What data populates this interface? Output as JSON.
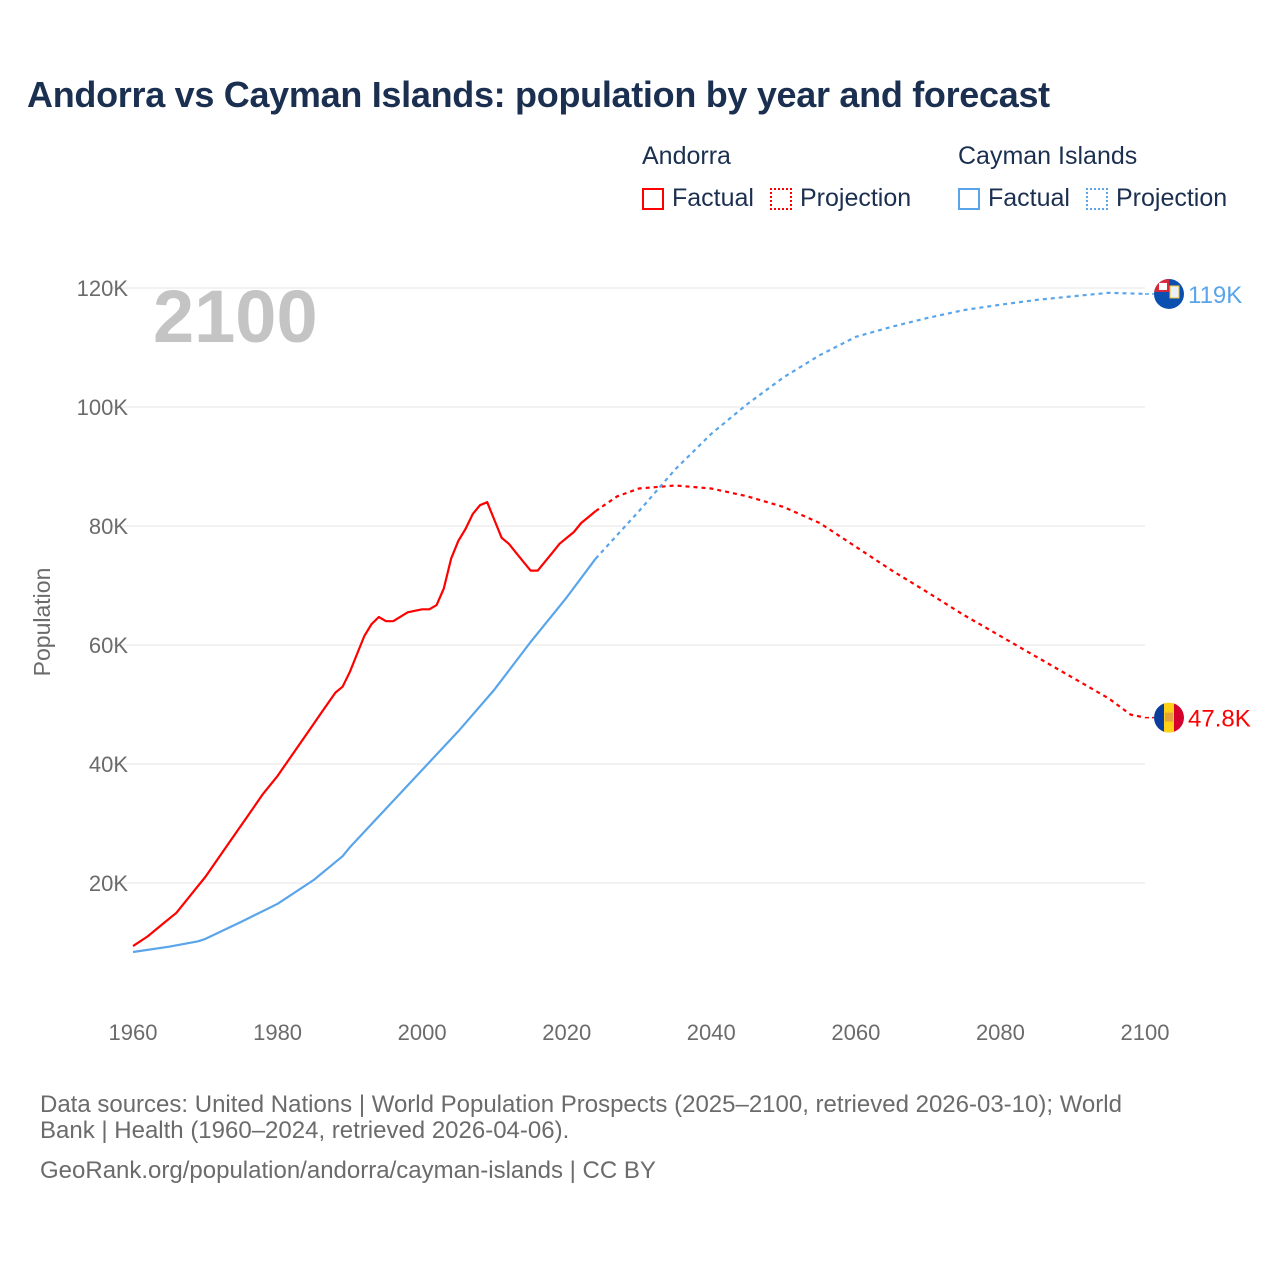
{
  "title": "Andorra vs Cayman Islands: population by year and forecast",
  "legend": {
    "groups": [
      {
        "name": "Andorra",
        "color": "#ff0000",
        "factual_label": "Factual",
        "projection_label": "Projection"
      },
      {
        "name": "Cayman Islands",
        "color": "#5aa5ea",
        "factual_label": "Factual",
        "projection_label": "Projection"
      }
    ]
  },
  "footer": {
    "sources_line1": "Data sources: United Nations | World Population Prospects (2025–2100, retrieved 2026-03-10); World",
    "sources_line2": "Bank | Health (1960–2024, retrieved 2026-04-06).",
    "credit": "GeoRank.org/population/andorra/cayman-islands | CC BY"
  },
  "chart_data": {
    "type": "line",
    "title": "Andorra vs Cayman Islands: population by year and forecast",
    "year_overlay": "2100",
    "xlabel": "",
    "ylabel": "Population",
    "xlim": [
      1960,
      2100
    ],
    "ylim": [
      0,
      120000
    ],
    "x_ticks": [
      1960,
      1980,
      2000,
      2020,
      2040,
      2060,
      2080,
      2100
    ],
    "x_tick_labels": [
      "1960",
      "1980",
      "2000",
      "2020",
      "2040",
      "2060",
      "2080",
      "2100"
    ],
    "y_ticks": [
      20000,
      40000,
      60000,
      80000,
      100000,
      120000
    ],
    "y_tick_labels": [
      "20K",
      "40K",
      "60K",
      "80K",
      "100K",
      "120K"
    ],
    "grid": true,
    "legend_position": "top-right",
    "series": [
      {
        "name": "Andorra",
        "color": "#ff0000",
        "end_label": "47.8K",
        "flag": "andorra-flag",
        "factual": {
          "x": [
            1960,
            1962,
            1964,
            1966,
            1968,
            1970,
            1972,
            1974,
            1976,
            1978,
            1980,
            1982,
            1984,
            1986,
            1988,
            1989,
            1990,
            1991,
            1992,
            1993,
            1994,
            1995,
            1996,
            1998,
            2000,
            2001,
            2002,
            2003,
            2004,
            2005,
            2006,
            2007,
            2008,
            2009,
            2010,
            2011,
            2012,
            2013,
            2014,
            2015,
            2016,
            2017,
            2018,
            2019,
            2020,
            2021,
            2022,
            2023,
            2024
          ],
          "y": [
            9400,
            11000,
            13000,
            15000,
            18000,
            21000,
            24500,
            28000,
            31500,
            35000,
            38000,
            41500,
            45000,
            48500,
            52000,
            53000,
            55500,
            58500,
            61500,
            63500,
            64700,
            64000,
            64000,
            65500,
            66000,
            66000,
            66700,
            69500,
            74500,
            77500,
            79500,
            82000,
            83500,
            84000,
            81000,
            78000,
            77000,
            75500,
            74000,
            72500,
            72500,
            74000,
            75500,
            77000,
            78000,
            79000,
            80500,
            81500,
            82500
          ]
        },
        "projection": {
          "x": [
            2024,
            2027,
            2030,
            2035,
            2040,
            2045,
            2050,
            2055,
            2060,
            2065,
            2070,
            2075,
            2080,
            2085,
            2090,
            2095,
            2098,
            2100
          ],
          "y": [
            82500,
            85000,
            86300,
            86800,
            86300,
            85000,
            83200,
            80500,
            76500,
            72500,
            68800,
            65000,
            61500,
            58000,
            54500,
            51000,
            48300,
            47800
          ]
        }
      },
      {
        "name": "Cayman Islands",
        "color": "#5aa5ea",
        "end_label": "119K",
        "flag": "cayman-islands-flag",
        "factual": {
          "x": [
            1960,
            1965,
            1969,
            1970,
            1975,
            1980,
            1985,
            1989,
            1990,
            1995,
            2000,
            2005,
            2010,
            2015,
            2020,
            2024
          ],
          "y": [
            8400,
            9300,
            10200,
            10600,
            13500,
            16500,
            20500,
            24500,
            26000,
            32500,
            39000,
            45500,
            52500,
            60500,
            68000,
            74500
          ]
        },
        "projection": {
          "x": [
            2024,
            2030,
            2035,
            2040,
            2045,
            2050,
            2055,
            2060,
            2065,
            2070,
            2075,
            2080,
            2085,
            2090,
            2095,
            2100
          ],
          "y": [
            74500,
            82500,
            89500,
            95500,
            100500,
            105000,
            108700,
            111800,
            113500,
            115000,
            116300,
            117200,
            118000,
            118600,
            119200,
            119000
          ]
        }
      }
    ]
  }
}
